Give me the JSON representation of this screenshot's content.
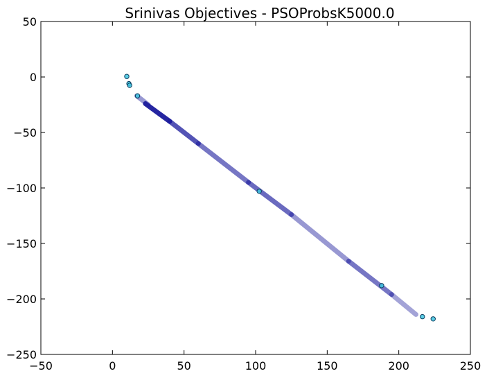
{
  "chart_data": {
    "type": "scatter",
    "title": "Srinivas Objectives - PSOProbsK5000.0",
    "xlabel": "",
    "ylabel": "",
    "xlim": [
      -50,
      250
    ],
    "ylim": [
      -250,
      50
    ],
    "xticks": [
      -50,
      0,
      50,
      100,
      150,
      200,
      250
    ],
    "yticks": [
      50,
      0,
      -50,
      -100,
      -150,
      -200,
      -250
    ],
    "xtick_labels": [
      "−50",
      "0",
      "50",
      "100",
      "150",
      "200",
      "250"
    ],
    "ytick_labels": [
      "50",
      "0",
      "−50",
      "−100",
      "−150",
      "−200",
      "−250"
    ],
    "grid": false,
    "series": [
      {
        "marker": "dense-trail",
        "color": "#1a1a9c",
        "segments": [
          {
            "x1": 17,
            "y1": -17,
            "x2": 25,
            "y2": -25,
            "opacity": 0.45
          },
          {
            "x1": 23,
            "y1": -24,
            "x2": 40,
            "y2": -40,
            "opacity": 0.95
          },
          {
            "x1": 40,
            "y1": -40,
            "x2": 60,
            "y2": -60,
            "opacity": 0.75
          },
          {
            "x1": 60,
            "y1": -60,
            "x2": 95,
            "y2": -95,
            "opacity": 0.6
          },
          {
            "x1": 95,
            "y1": -95,
            "x2": 125,
            "y2": -124,
            "opacity": 0.65
          },
          {
            "x1": 125,
            "y1": -124,
            "x2": 165,
            "y2": -166,
            "opacity": 0.45
          },
          {
            "x1": 165,
            "y1": -166,
            "x2": 195,
            "y2": -196,
            "opacity": 0.6
          },
          {
            "x1": 195,
            "y1": -196,
            "x2": 212,
            "y2": -214,
            "opacity": 0.4
          }
        ]
      },
      {
        "marker": "circle",
        "color": "#3fc6e0",
        "points": [
          {
            "x": 10,
            "y": 0.5
          },
          {
            "x": 11.5,
            "y": -6
          },
          {
            "x": 12,
            "y": -7.5
          },
          {
            "x": 17.5,
            "y": -17
          },
          {
            "x": 102.5,
            "y": -103
          },
          {
            "x": 188,
            "y": -188
          },
          {
            "x": 216.5,
            "y": -216
          },
          {
            "x": 224,
            "y": -218
          }
        ]
      }
    ]
  }
}
